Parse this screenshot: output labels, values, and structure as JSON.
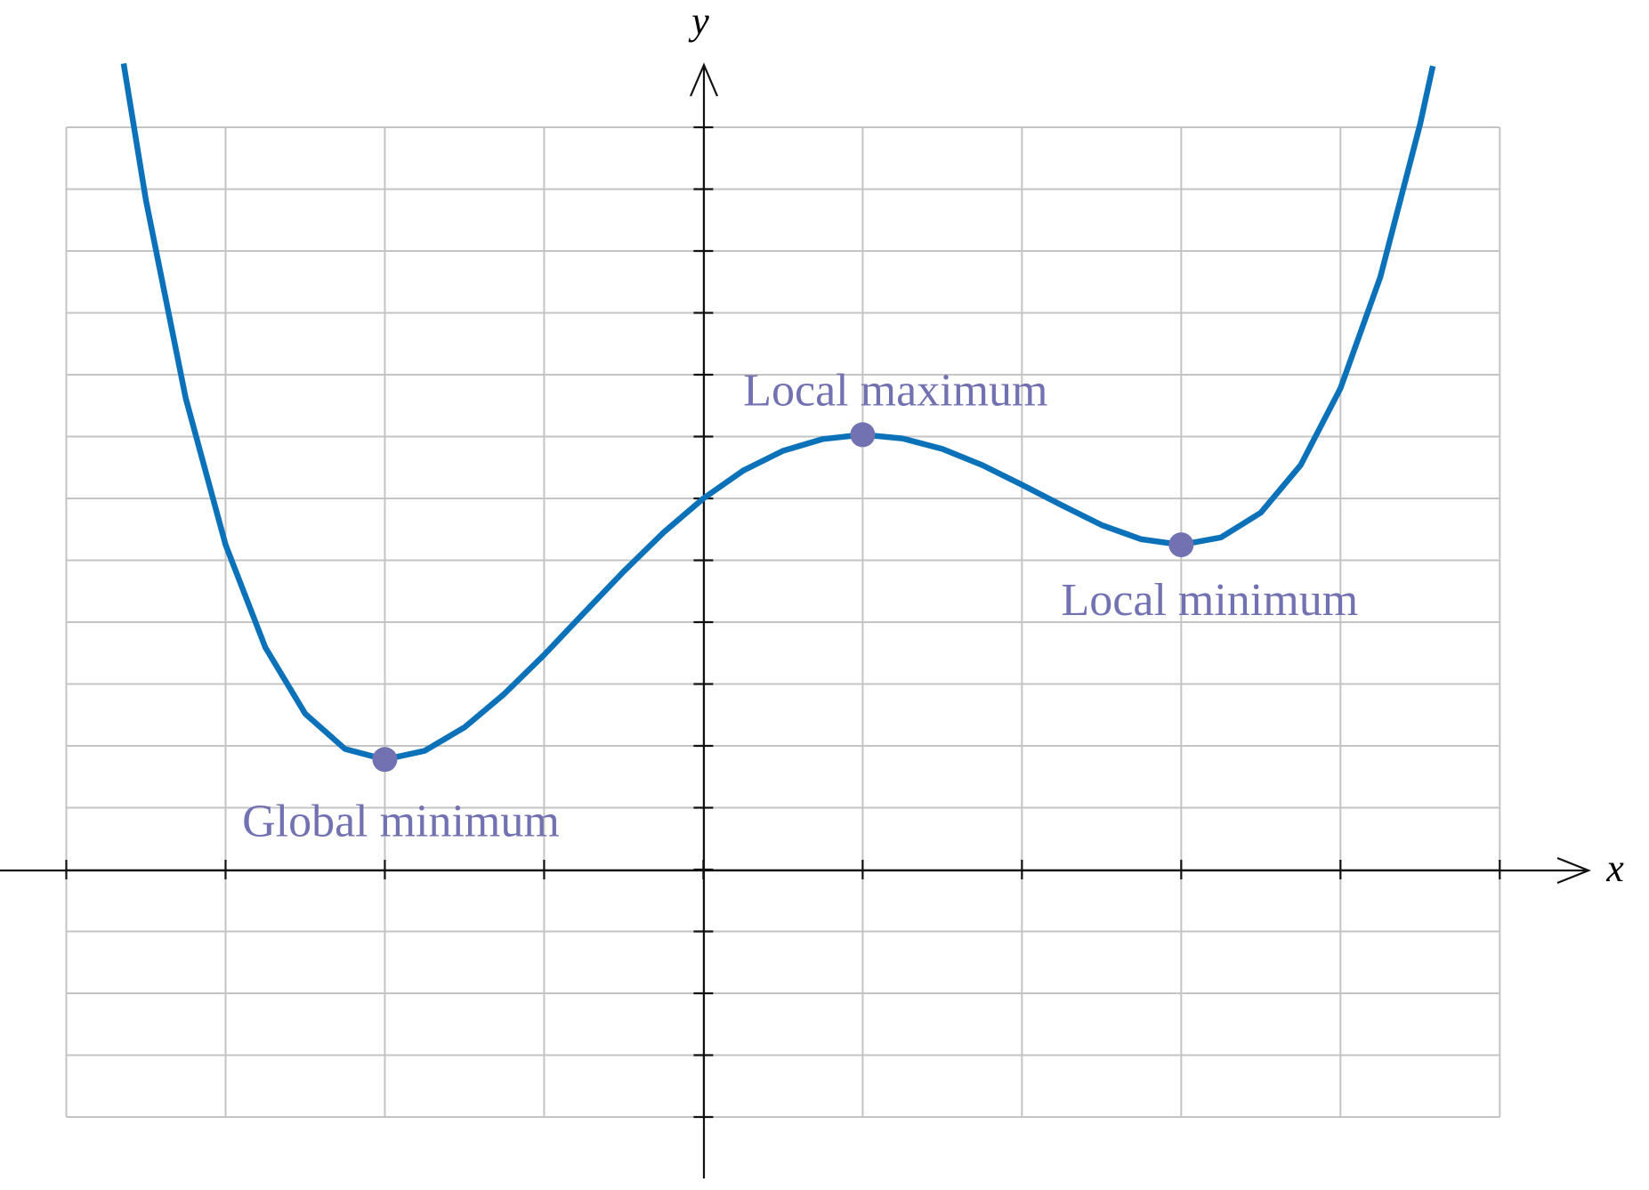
{
  "chart_data": {
    "type": "line",
    "x_label": "x",
    "y_label": "y",
    "xlim": [
      -4,
      5
    ],
    "ylim": [
      -4,
      12
    ],
    "xticks": [
      -4,
      -3,
      -2,
      -1,
      0,
      1,
      2,
      3,
      4,
      5
    ],
    "yticks": [
      -4,
      -3,
      -2,
      -1,
      0,
      1,
      2,
      3,
      4,
      5,
      6,
      7,
      8,
      9,
      10,
      11,
      12
    ],
    "grid": true,
    "series": [
      {
        "color": "#0b72ba",
        "x": [
          -3.64,
          -3.5,
          -3.25,
          -3,
          -2.75,
          -2.5,
          -2.25,
          -2,
          -1.75,
          -1.5,
          -1.25,
          -1,
          -0.75,
          -0.5,
          -0.25,
          0,
          0.25,
          0.5,
          0.75,
          1,
          1.25,
          1.5,
          1.75,
          2,
          2.25,
          2.5,
          2.75,
          3,
          3.25,
          3.5,
          3.75,
          4,
          4.25,
          4.5,
          4.58
        ],
        "values": [
          13.03,
          10.82,
          7.62,
          5.25,
          3.59,
          2.52,
          1.95,
          1.78,
          1.92,
          2.3,
          2.84,
          3.47,
          4.15,
          4.82,
          5.45,
          6,
          6.45,
          6.77,
          6.96,
          7.03,
          6.97,
          6.8,
          6.54,
          6.22,
          5.89,
          5.57,
          5.34,
          5.25,
          5.37,
          5.77,
          6.54,
          7.78,
          9.58,
          12.05,
          12.99
        ]
      }
    ],
    "annotations": [
      {
        "text": "Global minimum",
        "x": -2,
        "y": 1.78
      },
      {
        "text": "Local maximum",
        "x": 1,
        "y": 7.03
      },
      {
        "text": "Local minimum",
        "x": 3,
        "y": 5.25
      }
    ],
    "marker_color": "#7272b2"
  }
}
